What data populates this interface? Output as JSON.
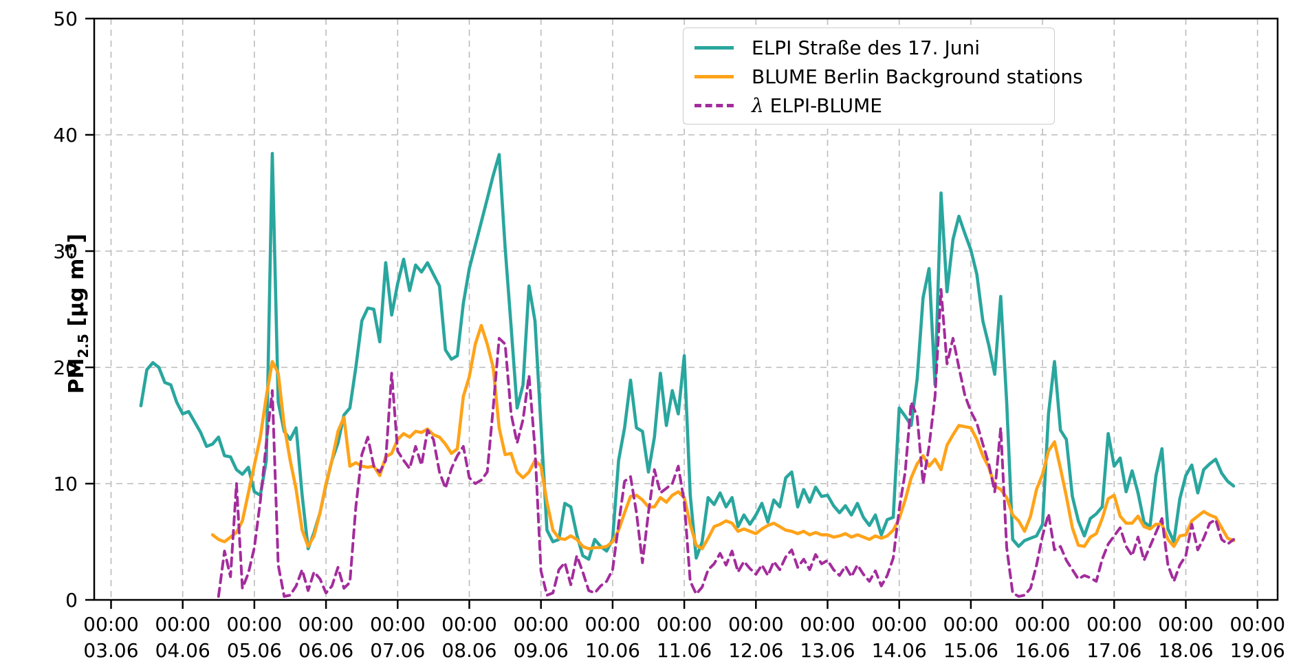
{
  "figure": {
    "kind": "matplotlib-style time series plot",
    "background": "#ffffff"
  },
  "colors": {
    "elpi": "#29A69E",
    "blume": "#FFA319",
    "lambda": "#A32C9C",
    "grid": "#bbbbbb",
    "spine": "#000000",
    "text": "#000000"
  },
  "legend": {
    "items": [
      {
        "symbol": "",
        "label": "ELPI Straße des 17. Juni",
        "line": "solid-teal"
      },
      {
        "symbol": "",
        "label": "BLUME Berlin Background stations",
        "line": "solid-orange"
      },
      {
        "symbol": "λ",
        "label": " ELPI-BLUME",
        "line": "dashed-purple"
      }
    ]
  },
  "axes": {
    "y": {
      "label_main": "PM",
      "label_sub": "2.5",
      "label_mid": " [µg m",
      "label_sup": "-3",
      "label_end": "]",
      "ticks": [
        0,
        10,
        20,
        30,
        40,
        50
      ],
      "range": [
        0,
        50
      ]
    },
    "x": {
      "tick_time": "00:00",
      "tick_dates": [
        "03.06",
        "04.06",
        "05.06",
        "06.06",
        "07.06",
        "08.06",
        "09.06",
        "10.06",
        "11.06",
        "12.06",
        "13.06",
        "14.06",
        "15.06",
        "16.06",
        "17.06",
        "18.06",
        "19.06"
      ]
    }
  },
  "chart_data": {
    "type": "line",
    "title": "",
    "xlabel": "",
    "ylabel": "PM2.5 [ug m-3]",
    "ylim": [
      0,
      50
    ],
    "grid": "dashed both axes",
    "legend_position": "upper right",
    "x_start": "03.06 00:00",
    "step_hours": 2,
    "x_note": "values sampled every 2 hours from 03.06 00:00 to 18.06 16:00; null = no data",
    "series": [
      {
        "name": "ELPI Straße des 17. Juni",
        "style": "solid",
        "color": "#29A69E",
        "values": [
          null,
          null,
          null,
          null,
          null,
          16.7,
          19.8,
          20.4,
          20.0,
          18.7,
          18.5,
          17.0,
          16.0,
          16.2,
          15.3,
          14.4,
          13.2,
          13.4,
          14.0,
          12.4,
          12.3,
          11.2,
          10.8,
          11.4,
          9.3,
          9.0,
          12.0,
          38.4,
          17.0,
          14.5,
          13.8,
          14.8,
          9.0,
          4.4,
          5.8,
          7.5,
          9.9,
          12.0,
          13.5,
          15.9,
          16.5,
          20.0,
          24.0,
          25.1,
          25.0,
          22.2,
          29.0,
          24.5,
          27.2,
          29.3,
          26.6,
          28.8,
          28.2,
          29.0,
          28.0,
          27.0,
          21.5,
          20.7,
          21.0,
          25.5,
          28.5,
          30.5,
          32.5,
          34.5,
          36.5,
          38.3,
          30.3,
          23.5,
          16.5,
          18.5,
          27.0,
          24.0,
          15.0,
          6.0,
          5.0,
          5.2,
          8.3,
          8.0,
          5.6,
          3.8,
          3.5,
          5.2,
          4.6,
          4.2,
          5.2,
          12.0,
          14.8,
          18.9,
          14.8,
          14.5,
          11.0,
          14.0,
          19.5,
          15.0,
          18.0,
          16.0,
          21.0,
          9.0,
          3.6,
          5.0,
          8.8,
          8.2,
          9.2,
          8.0,
          8.8,
          6.3,
          7.3,
          6.5,
          7.3,
          8.3,
          6.7,
          8.6,
          8.0,
          10.5,
          11.0,
          8.0,
          9.5,
          8.4,
          9.7,
          8.9,
          9.0,
          8.1,
          7.5,
          8.1,
          7.3,
          8.3,
          7.1,
          6.4,
          7.3,
          5.6,
          6.9,
          7.1,
          16.5,
          15.8,
          15.0,
          19.0,
          26.0,
          28.5,
          18.5,
          35.0,
          26.5,
          31.0,
          33.0,
          31.5,
          30.1,
          28.0,
          24.0,
          21.9,
          19.4,
          26.1,
          17.0,
          5.2,
          4.6,
          5.1,
          5.3,
          5.5,
          6.5,
          16.0,
          20.5,
          14.6,
          13.8,
          8.9,
          6.8,
          5.5,
          7.0,
          7.4,
          8.0,
          14.3,
          11.5,
          12.2,
          9.3,
          11.1,
          9.2,
          6.7,
          6.3,
          10.7,
          13.0,
          6.1,
          5.0,
          8.7,
          10.7,
          11.6,
          9.2,
          11.2,
          11.7,
          12.1,
          10.9,
          10.2,
          9.8
        ]
      },
      {
        "name": "BLUME Berlin Background stations",
        "style": "solid",
        "color": "#FFA319",
        "values": [
          null,
          null,
          null,
          null,
          null,
          null,
          null,
          null,
          null,
          null,
          null,
          null,
          null,
          null,
          null,
          null,
          null,
          5.6,
          5.2,
          5.0,
          5.4,
          5.8,
          6.8,
          9.2,
          11.6,
          14.0,
          17.5,
          20.5,
          19.5,
          15.0,
          12.0,
          9.5,
          6.0,
          4.6,
          5.5,
          7.5,
          10.0,
          12.0,
          14.5,
          15.7,
          11.5,
          11.8,
          11.5,
          11.4,
          11.5,
          10.7,
          12.3,
          12.6,
          13.8,
          14.3,
          14.0,
          14.5,
          14.4,
          14.7,
          14.2,
          14.0,
          13.4,
          12.6,
          13.0,
          17.5,
          19.2,
          22.0,
          23.6,
          22.0,
          20.0,
          14.8,
          12.5,
          12.6,
          11.0,
          10.5,
          11.0,
          12.0,
          11.5,
          8.4,
          6.0,
          5.3,
          5.2,
          5.5,
          5.2,
          4.6,
          4.4,
          4.5,
          4.5,
          4.6,
          5.0,
          6.0,
          7.5,
          8.9,
          9.0,
          8.6,
          8.0,
          8.0,
          8.8,
          8.4,
          9.0,
          9.3,
          8.8,
          6.5,
          4.7,
          4.4,
          5.3,
          6.3,
          6.5,
          6.8,
          6.6,
          5.9,
          6.1,
          5.9,
          5.7,
          6.1,
          6.4,
          6.6,
          6.3,
          6.0,
          5.9,
          5.7,
          5.9,
          5.6,
          5.8,
          5.6,
          5.6,
          5.4,
          5.5,
          5.7,
          5.4,
          5.6,
          5.4,
          5.2,
          5.5,
          5.3,
          5.5,
          6.0,
          7.0,
          8.6,
          10.5,
          11.7,
          12.4,
          11.5,
          12.1,
          11.2,
          13.3,
          14.2,
          15.0,
          14.9,
          14.8,
          13.8,
          12.4,
          11.4,
          9.8,
          9.5,
          8.8,
          7.3,
          6.8,
          5.9,
          7.2,
          9.5,
          10.8,
          12.8,
          13.6,
          11.3,
          8.9,
          6.2,
          4.7,
          4.6,
          5.4,
          5.7,
          7.0,
          8.7,
          9.0,
          7.2,
          6.6,
          6.6,
          7.2,
          6.3,
          6.1,
          6.5,
          6.5,
          5.2,
          4.6,
          5.5,
          5.6,
          6.8,
          7.2,
          7.6,
          7.3,
          7.1,
          6.2,
          5.3,
          5.1
        ]
      },
      {
        "name": "λ ELPI-BLUME",
        "style": "dashed",
        "color": "#A32C9C",
        "values": [
          null,
          null,
          null,
          null,
          null,
          null,
          null,
          null,
          null,
          null,
          null,
          null,
          null,
          null,
          null,
          null,
          null,
          null,
          0.3,
          4.2,
          2.0,
          10.0,
          1.0,
          2.3,
          4.5,
          8.5,
          13.5,
          18.0,
          3.0,
          0.3,
          0.4,
          1.2,
          2.6,
          0.8,
          2.4,
          1.8,
          0.6,
          1.2,
          2.8,
          1.0,
          1.5,
          8.0,
          12.5,
          14.0,
          11.5,
          11.0,
          12.0,
          19.5,
          12.8,
          12.0,
          11.3,
          13.2,
          11.6,
          14.6,
          13.8,
          11.0,
          9.6,
          11.3,
          12.4,
          13.2,
          10.5,
          10.0,
          10.3,
          11.0,
          16.5,
          22.5,
          22.0,
          16.0,
          13.5,
          15.5,
          19.3,
          13.0,
          2.5,
          0.4,
          0.6,
          2.6,
          3.2,
          1.3,
          3.8,
          2.4,
          0.8,
          0.6,
          1.2,
          1.6,
          2.6,
          6.5,
          10.2,
          10.6,
          7.5,
          3.2,
          7.5,
          11.2,
          9.2,
          9.6,
          10.0,
          11.5,
          8.4,
          1.6,
          0.5,
          1.1,
          2.6,
          3.1,
          4.0,
          3.0,
          4.2,
          2.4,
          3.3,
          2.7,
          2.2,
          3.0,
          2.1,
          3.3,
          2.6,
          3.7,
          4.3,
          2.8,
          3.5,
          2.6,
          3.9,
          3.1,
          3.4,
          2.6,
          2.1,
          2.9,
          2.0,
          3.0,
          2.2,
          1.6,
          2.5,
          1.2,
          2.1,
          3.6,
          7.8,
          11.0,
          17.0,
          15.8,
          10.0,
          13.2,
          17.5,
          26.7,
          20.3,
          22.5,
          20.0,
          17.6,
          16.2,
          15.2,
          13.4,
          11.7,
          9.3,
          14.8,
          4.5,
          0.6,
          0.3,
          0.4,
          1.0,
          3.0,
          5.5,
          7.4,
          4.3,
          4.6,
          3.4,
          2.6,
          1.8,
          2.1,
          1.9,
          1.6,
          3.5,
          4.8,
          5.5,
          6.2,
          4.6,
          3.8,
          5.4,
          3.4,
          4.6,
          5.8,
          7.0,
          3.0,
          1.6,
          3.0,
          3.8,
          6.5,
          4.3,
          5.3,
          6.6,
          6.9,
          5.2,
          4.8,
          5.2
        ]
      }
    ]
  }
}
